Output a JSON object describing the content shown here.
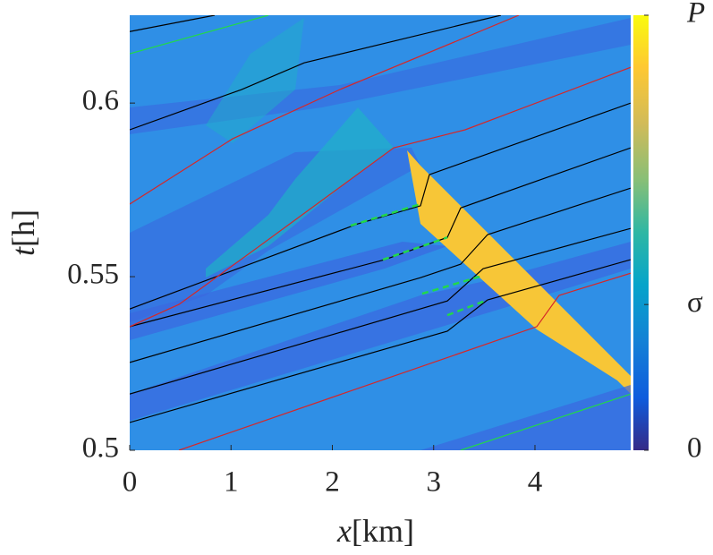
{
  "chart_data": {
    "type": "line",
    "xlabel": {
      "var": "x",
      "unit": "[km]"
    },
    "ylabel": {
      "var": "t",
      "unit": "[h]"
    },
    "xlim": [
      0,
      4.945
    ],
    "xticks": [
      0,
      1,
      2,
      3,
      4
    ],
    "ylim": [
      0.5,
      0.6253
    ],
    "yticks": [
      0.5,
      0.55,
      0.6
    ],
    "colorbar": {
      "lim": [
        0,
        1
      ],
      "ticks": [
        0,
        {
          "value": 0.335,
          "label": "σ"
        },
        {
          "value": 1,
          "label": "P"
        }
      ]
    },
    "series": [
      {
        "color": "#000000",
        "x": [
          0,
          3.135,
          3.532,
          4.945
        ],
        "values": [
          0.508,
          0.5343,
          0.5433,
          0.5549
        ]
      },
      {
        "color": "#000000",
        "x": [
          0,
          3.135,
          3.488,
          4.945
        ],
        "values": [
          0.5162,
          0.543,
          0.5523,
          0.5639
        ]
      },
      {
        "color": "#000000",
        "x": [
          0,
          2.87,
          3.267,
          3.532,
          4.945
        ],
        "values": [
          0.5253,
          0.5497,
          0.5536,
          0.5621,
          0.5755
        ]
      },
      {
        "color": "#000000",
        "x": [
          0,
          2.517,
          3.135,
          3.267,
          4.945
        ],
        "values": [
          0.5356,
          0.5549,
          0.5613,
          0.5698,
          0.5871
        ]
      },
      {
        "color": "#000000",
        "x": [
          0,
          2.252,
          2.87,
          2.958,
          4.945
        ],
        "values": [
          0.5407,
          0.5652,
          0.5704,
          0.5794,
          0.6
        ]
      },
      {
        "color": "#000000",
        "x": [
          0,
          1.104,
          1.722,
          3.664
        ],
        "values": [
          0.5923,
          0.6039,
          0.6116,
          0.6253
        ]
      },
      {
        "color": "#000000",
        "x": [
          0,
          0.839
        ],
        "values": [
          0.6206,
          0.6253
        ]
      },
      {
        "color": "#d62728",
        "x": [
          0.486,
          4.018,
          4.238,
          4.945
        ],
        "values": [
          0.5,
          0.5356,
          0.5446,
          0.551
        ]
      },
      {
        "color": "#d62728",
        "x": [
          0,
          0.486,
          1.28,
          2.605,
          3.311,
          4.945
        ],
        "values": [
          0.5356,
          0.542,
          0.5588,
          0.5871,
          0.5923,
          0.6103
        ]
      },
      {
        "color": "#d62728",
        "x": [
          0,
          1.015,
          2.075,
          3.841
        ],
        "values": [
          0.5709,
          0.5897,
          0.6039,
          0.6253
        ]
      },
      {
        "color": "#22d84a",
        "x": [
          3.267,
          4.945
        ],
        "values": [
          0.5,
          0.5162
        ]
      },
      {
        "color": "#22d84a",
        "x": [
          0,
          1.369
        ],
        "values": [
          0.6142,
          0.6253
        ]
      },
      {
        "color": "#22d84a",
        "dash": true,
        "x": [
          2.181,
          2.87
        ],
        "values": [
          0.5647,
          0.5709
        ]
      },
      {
        "color": "#22d84a",
        "dash": true,
        "x": [
          2.499,
          3.135
        ],
        "values": [
          0.5549,
          0.5613
        ]
      },
      {
        "color": "#22d84a",
        "dash": true,
        "x": [
          2.887,
          3.488
        ],
        "values": [
          0.5451,
          0.5503
        ]
      },
      {
        "color": "#22d84a",
        "dash": true,
        "x": [
          3.135,
          3.532
        ],
        "values": [
          0.5389,
          0.5433
        ]
      }
    ]
  }
}
